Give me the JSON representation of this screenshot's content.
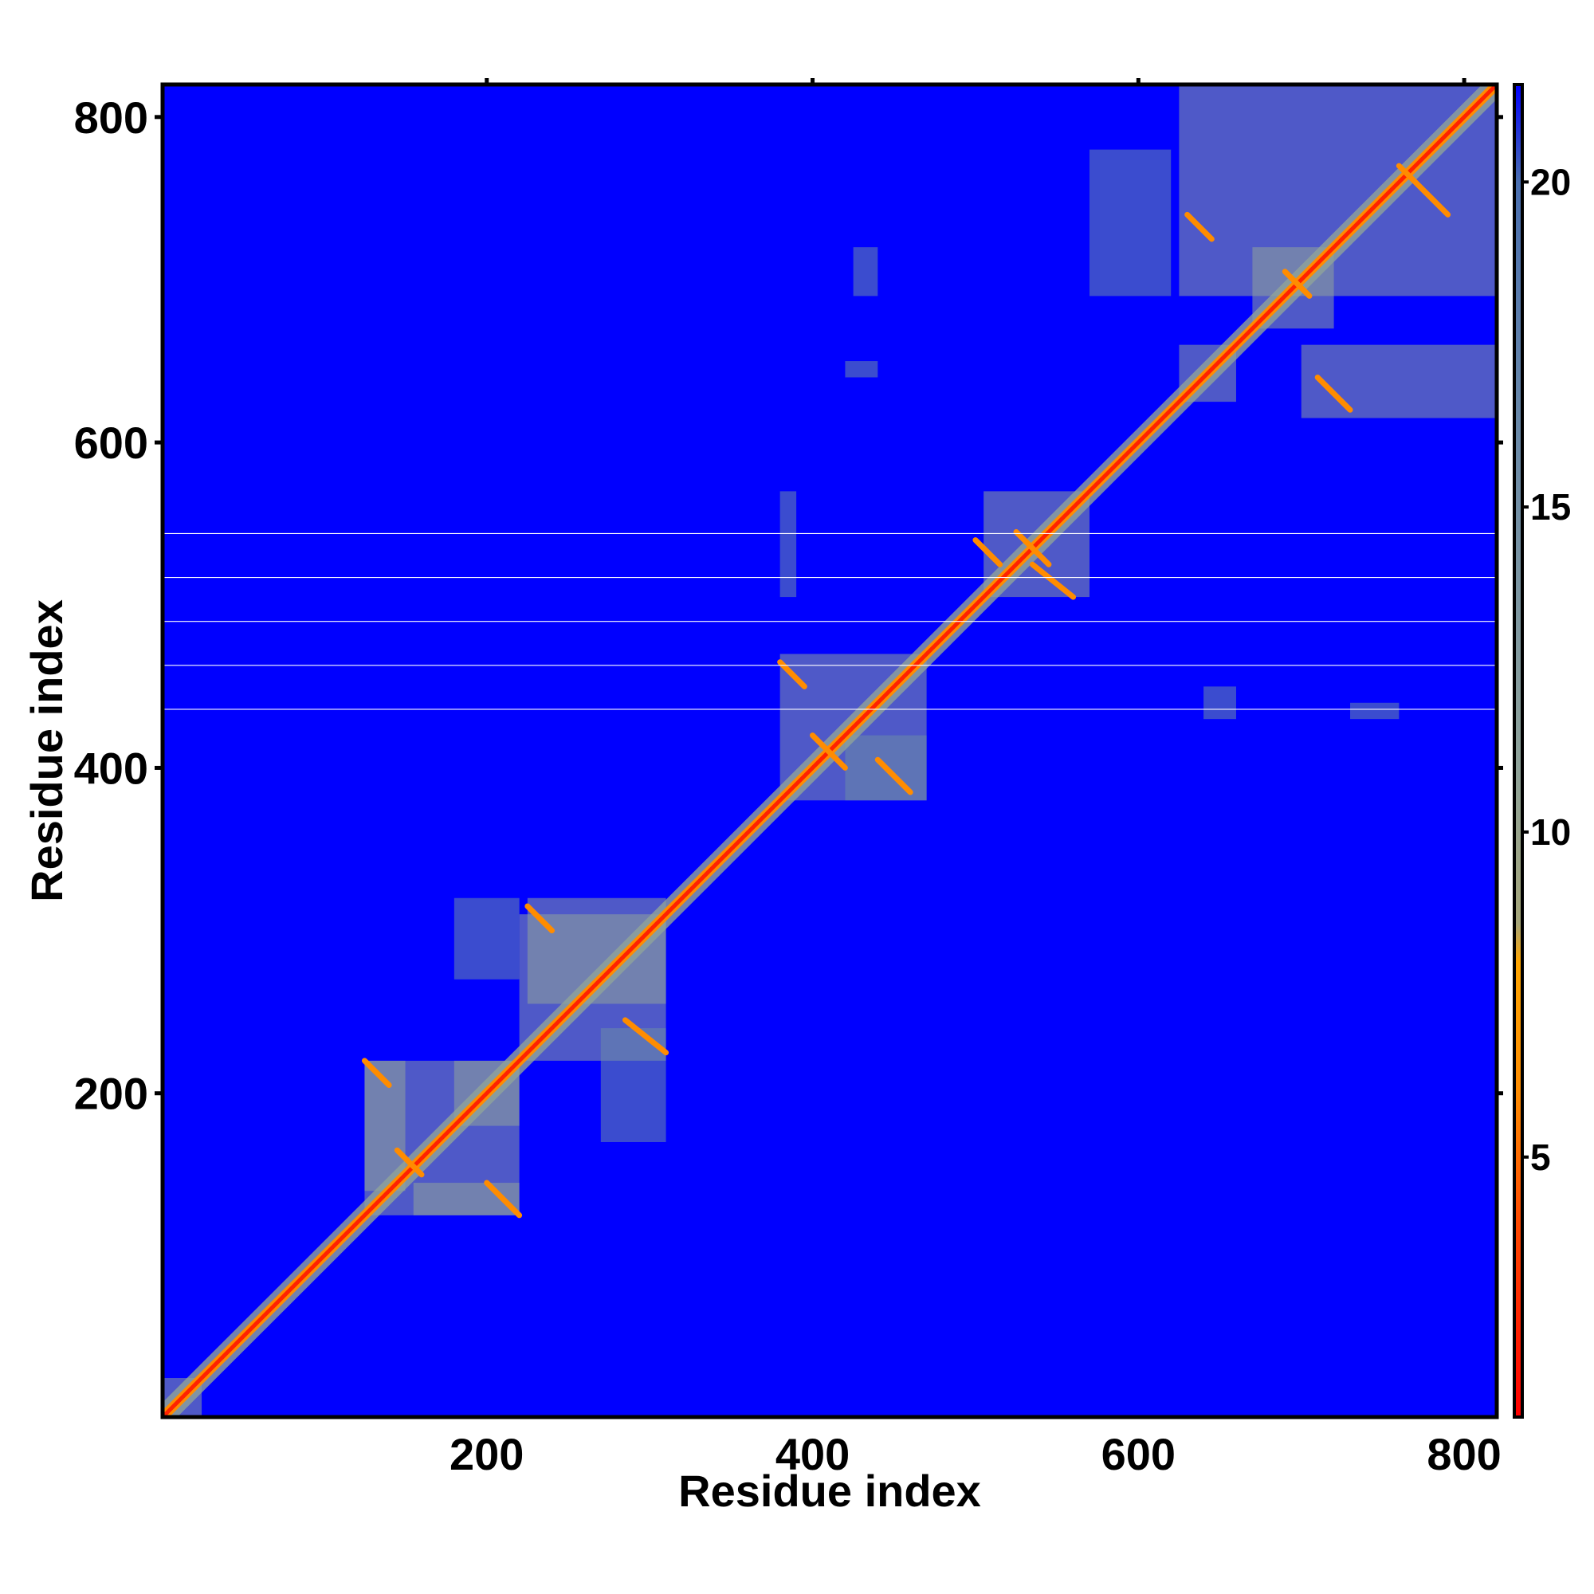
{
  "chart_data": {
    "type": "heatmap",
    "title": "",
    "xlabel": "Residue index",
    "ylabel": "Residue index",
    "xlim": [
      1,
      820
    ],
    "ylim": [
      1,
      820
    ],
    "x_ticks": [
      "200",
      "400",
      "600",
      "800"
    ],
    "y_ticks": [
      "200",
      "400",
      "600",
      "800"
    ],
    "colorbar": {
      "range": [
        1,
        21.5
      ],
      "ticks": [
        "5",
        "10",
        "15",
        "20"
      ],
      "stops": [
        {
          "value": 1,
          "color": "#ff0000"
        },
        {
          "value": 4,
          "color": "#ff4a00"
        },
        {
          "value": 6,
          "color": "#ff8c00"
        },
        {
          "value": 8,
          "color": "#ffa500"
        },
        {
          "value": 8.6,
          "color": "#a6a67a"
        },
        {
          "value": 11,
          "color": "#8fa39a"
        },
        {
          "value": 16,
          "color": "#6b8aa8"
        },
        {
          "value": 20,
          "color": "#4a6fb0"
        },
        {
          "value": 21.5,
          "color": "#0000ff"
        }
      ]
    },
    "background_value": 21.5,
    "background_color": "#0000ff",
    "diagonal": {
      "value": 1,
      "color": "#ff2200"
    },
    "contact_blocks": [
      {
        "x": [
          2,
          25
        ],
        "y": [
          2,
          25
        ],
        "value": 11
      },
      {
        "x": [
          125,
          220
        ],
        "y": [
          125,
          220
        ],
        "value": 14
      },
      {
        "x": [
          125,
          150
        ],
        "y": [
          140,
          220
        ],
        "value": 15
      },
      {
        "x": [
          155,
          220
        ],
        "y": [
          125,
          145
        ],
        "value": 15
      },
      {
        "x": [
          180,
          220
        ],
        "y": [
          180,
          220
        ],
        "value": 12
      },
      {
        "x": [
          220,
          310
        ],
        "y": [
          220,
          310
        ],
        "value": 14
      },
      {
        "x": [
          225,
          310
        ],
        "y": [
          255,
          320
        ],
        "value": 15
      },
      {
        "x": [
          270,
          310
        ],
        "y": [
          170,
          240
        ],
        "value": 16
      },
      {
        "x": [
          180,
          220
        ],
        "y": [
          270,
          320
        ],
        "value": 17
      },
      {
        "x": [
          380,
          470
        ],
        "y": [
          380,
          470
        ],
        "value": 13
      },
      {
        "x": [
          505,
          570
        ],
        "y": [
          505,
          570
        ],
        "value": 13
      },
      {
        "x": [
          625,
          830
        ],
        "y": [
          690,
          830
        ],
        "value": 15
      },
      {
        "x": [
          700,
          830
        ],
        "y": [
          615,
          660
        ],
        "value": 15
      },
      {
        "x": [
          625,
          660
        ],
        "y": [
          625,
          660
        ],
        "value": 12
      },
      {
        "x": [
          670,
          720
        ],
        "y": [
          670,
          720
        ],
        "value": 13
      },
      {
        "x": [
          420,
          470
        ],
        "y": [
          380,
          420
        ],
        "value": 16
      },
      {
        "x": [
          420,
          440
        ],
        "y": [
          640,
          650
        ],
        "value": 18
      },
      {
        "x": [
          425,
          440
        ],
        "y": [
          690,
          720
        ],
        "value": 18
      },
      {
        "x": [
          570,
          620
        ],
        "y": [
          690,
          780
        ],
        "value": 18
      },
      {
        "x": [
          380,
          390
        ],
        "y": [
          505,
          570
        ],
        "value": 18
      },
      {
        "x": [
          640,
          660
        ],
        "y": [
          430,
          450
        ],
        "value": 18
      },
      {
        "x": [
          730,
          760
        ],
        "y": [
          430,
          440
        ],
        "value": 18
      }
    ],
    "contact_lines": [
      {
        "x": [
          125,
          140
        ],
        "y": [
          220,
          205
        ],
        "value": 5
      },
      {
        "x": [
          145,
          160
        ],
        "y": [
          165,
          150
        ],
        "value": 5
      },
      {
        "x": [
          200,
          220
        ],
        "y": [
          145,
          125
        ],
        "value": 5
      },
      {
        "x": [
          225,
          240
        ],
        "y": [
          315,
          300
        ],
        "value": 5
      },
      {
        "x": [
          285,
          310
        ],
        "y": [
          245,
          225
        ],
        "value": 5
      },
      {
        "x": [
          380,
          395
        ],
        "y": [
          465,
          450
        ],
        "value": 5
      },
      {
        "x": [
          400,
          420
        ],
        "y": [
          420,
          400
        ],
        "value": 5
      },
      {
        "x": [
          440,
          460
        ],
        "y": [
          405,
          385
        ],
        "value": 5
      },
      {
        "x": [
          500,
          515
        ],
        "y": [
          540,
          525
        ],
        "value": 5
      },
      {
        "x": [
          525,
          545
        ],
        "y": [
          545,
          525
        ],
        "value": 5
      },
      {
        "x": [
          535,
          560
        ],
        "y": [
          525,
          505
        ],
        "value": 5
      },
      {
        "x": [
          630,
          645
        ],
        "y": [
          740,
          725
        ],
        "value": 5
      },
      {
        "x": [
          690,
          705
        ],
        "y": [
          705,
          690
        ],
        "value": 5
      },
      {
        "x": [
          710,
          730
        ],
        "y": [
          640,
          620
        ],
        "value": 5
      },
      {
        "x": [
          760,
          790
        ],
        "y": [
          770,
          740
        ],
        "value": 5
      }
    ],
    "missing_rows": [
      436,
      463,
      490,
      517,
      544
    ],
    "missing_color": "#ffffff",
    "grid": false,
    "legend": "none"
  }
}
